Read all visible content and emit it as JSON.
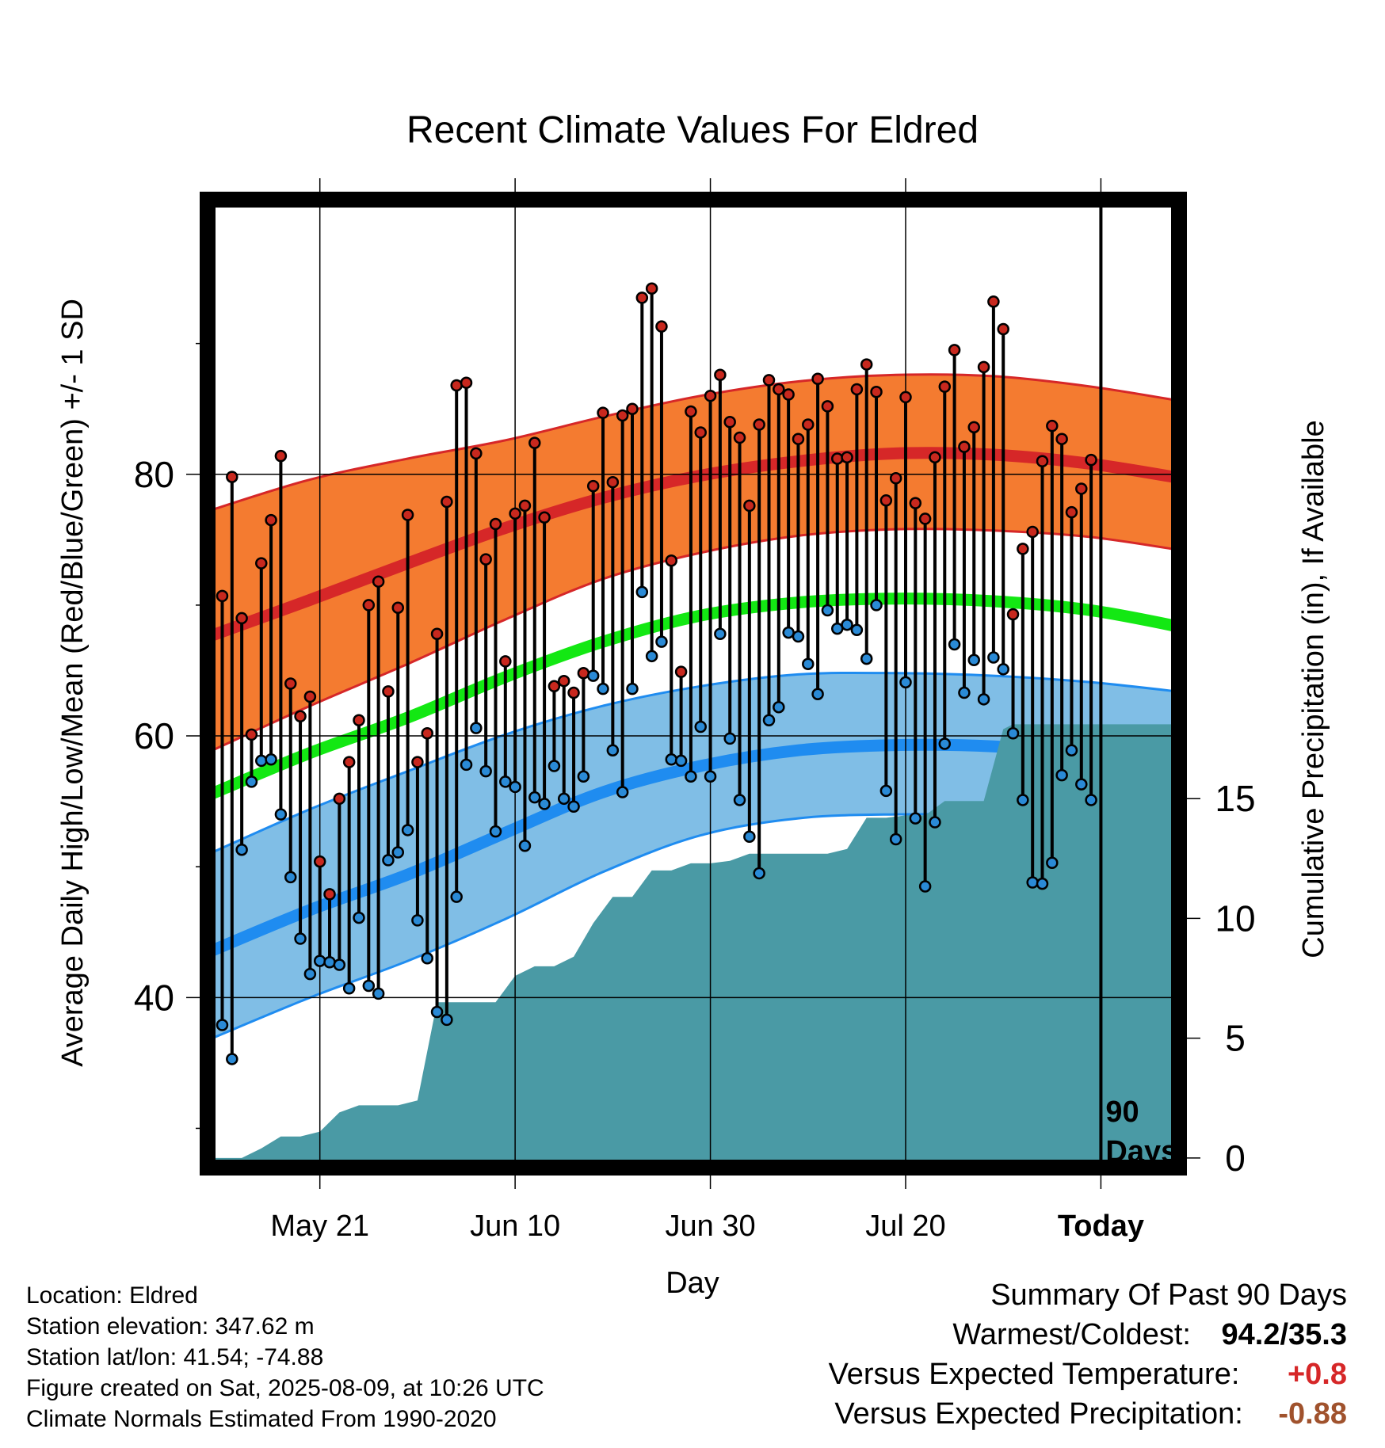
{
  "chart_data": {
    "type": "line",
    "title": "Recent Climate Values For Eldred",
    "xlabel": "Day",
    "ylabel_left": "Average Daily High/Low/Mean (Red/Blue/Green) +/- 1 SD",
    "ylabel_right": "Cumulative Precipitation (in), If Available",
    "x_ticks": [
      "May 21",
      "Jun 10",
      "Jun 30",
      "Jul 20",
      "Today"
    ],
    "x_tick_days": [
      10,
      30,
      50,
      70,
      90
    ],
    "xlim_days": [
      -1.5,
      98
    ],
    "ylim_temperature": [
      27,
      101
    ],
    "y_ticks_temperature": [
      40,
      60,
      80
    ],
    "y_minor_ticks_temperature": [
      30,
      50,
      70,
      90
    ],
    "ylim_precipitation": [
      -0.4,
      40
    ],
    "y_ticks_precipitation": [
      0,
      5,
      10,
      15
    ],
    "today_marker_label": [
      "90",
      "Days"
    ],
    "grid": true,
    "colors": {
      "high_band": "#f47b30",
      "high_line": "#d62728",
      "low_band": "#80bee6",
      "low_line": "#1f8cf0",
      "mean_line": "#13e813",
      "precip": "#4a9aa5",
      "high_dot": "#c8281e",
      "low_dot": "#2a8ad6",
      "precip_anomaly": "#a0522d",
      "temp_anomaly": "#d62728"
    },
    "normals": {
      "day": [
        -1,
        9,
        19,
        29,
        39,
        49,
        59,
        69,
        79,
        89,
        99
      ],
      "high_mean": [
        67.7,
        70.4,
        73.2,
        75.9,
        78.2,
        79.9,
        81.0,
        81.6,
        81.5,
        80.8,
        79.6
      ],
      "high_upper": [
        77.3,
        79.6,
        81.2,
        82.6,
        84.4,
        86.0,
        87.1,
        87.6,
        87.5,
        86.7,
        85.5
      ],
      "high_lower": [
        58.9,
        62.3,
        65.5,
        68.9,
        72.0,
        74.0,
        75.3,
        75.8,
        75.7,
        75.2,
        74.1
      ],
      "mean_mean": [
        55.6,
        58.7,
        61.4,
        64.5,
        67.2,
        69.2,
        70.2,
        70.5,
        70.3,
        69.6,
        68.2
      ],
      "low_mean": [
        43.6,
        46.7,
        49.4,
        52.6,
        55.7,
        57.7,
        58.9,
        59.3,
        59.2,
        58.5,
        57.3
      ],
      "low_upper": [
        51.1,
        54.4,
        57.3,
        60.1,
        62.3,
        63.8,
        64.7,
        64.8,
        64.6,
        64.1,
        63.3
      ],
      "low_lower": [
        36.9,
        40.0,
        42.8,
        46.0,
        49.6,
        52.4,
        53.7,
        54.0,
        53.9,
        53.3,
        52.2
      ]
    },
    "series": [
      {
        "name": "High",
        "values": [
          70.7,
          79.8,
          69.0,
          60.1,
          73.2,
          76.5,
          81.4,
          64.0,
          61.5,
          63.0,
          50.4,
          47.9,
          55.2,
          58.0,
          61.2,
          70.0,
          71.8,
          63.4,
          69.8,
          76.9,
          58.0,
          60.2,
          67.8,
          77.9,
          86.8,
          87.0,
          81.6,
          73.5,
          76.2,
          65.7,
          77.0,
          77.6,
          82.4,
          76.7,
          63.8,
          64.2,
          63.3,
          64.8,
          79.1,
          84.7,
          79.4,
          84.5,
          85.0,
          93.5,
          94.2,
          91.3,
          73.4,
          64.9,
          84.8,
          83.2,
          86.0,
          87.6,
          84.0,
          82.8,
          77.6,
          83.8,
          87.2,
          86.5,
          86.1,
          82.7,
          83.8,
          87.3,
          85.2,
          81.2,
          81.3,
          86.5,
          88.4,
          86.3,
          78.0,
          79.7,
          85.9,
          77.8,
          76.6,
          81.3,
          86.7,
          89.5,
          82.1,
          83.6,
          88.2,
          93.2,
          91.1,
          69.3,
          74.3,
          75.6,
          81.0,
          83.7,
          82.7,
          77.1,
          78.9,
          81.1
        ]
      },
      {
        "name": "Low",
        "values": [
          37.9,
          35.3,
          51.3,
          56.5,
          58.1,
          58.2,
          54.0,
          49.2,
          44.5,
          41.8,
          42.8,
          42.7,
          42.5,
          40.7,
          46.1,
          40.9,
          40.3,
          50.5,
          51.1,
          52.8,
          45.9,
          43.0,
          38.9,
          38.3,
          47.7,
          57.8,
          60.6,
          57.3,
          52.7,
          56.5,
          56.1,
          51.6,
          55.3,
          54.8,
          57.7,
          55.2,
          54.6,
          56.9,
          64.6,
          63.6,
          58.9,
          55.7,
          63.6,
          71.0,
          66.1,
          67.2,
          58.2,
          58.1,
          56.9,
          60.7,
          56.9,
          67.8,
          59.8,
          55.1,
          52.3,
          49.5,
          61.2,
          62.2,
          67.9,
          67.6,
          65.5,
          63.2,
          69.6,
          68.2,
          68.5,
          68.1,
          65.9,
          70.0,
          55.8,
          52.1,
          64.1,
          53.7,
          48.5,
          53.4,
          59.4,
          67.0,
          63.3,
          65.8,
          62.8,
          66.0,
          65.1,
          60.2,
          55.1,
          48.8,
          48.7,
          50.3,
          57.0,
          58.9,
          56.3,
          55.1
        ]
      },
      {
        "name": "Cumulative Precipitation",
        "days": [
          -1,
          2,
          4,
          6,
          8,
          10,
          12,
          14,
          16,
          18,
          20,
          22,
          23,
          26,
          28,
          30,
          32,
          34,
          36,
          38,
          40,
          42,
          44,
          46,
          48,
          50,
          52,
          54,
          56,
          58,
          60,
          62,
          64,
          66,
          68,
          70,
          72,
          74,
          76,
          78,
          80,
          81,
          82,
          84,
          86,
          88,
          90,
          92,
          94,
          96,
          98
        ],
        "values": [
          0,
          0,
          0.4,
          0.9,
          0.9,
          1.1,
          1.9,
          2.2,
          2.2,
          2.2,
          2.4,
          6.5,
          6.5,
          6.5,
          6.5,
          7.6,
          8.0,
          8.0,
          8.4,
          9.8,
          10.9,
          10.9,
          12.0,
          12.0,
          12.3,
          12.3,
          12.4,
          12.7,
          12.7,
          12.7,
          12.7,
          12.7,
          12.9,
          14.2,
          14.2,
          14.3,
          14.3,
          14.9,
          14.9,
          14.9,
          17.9,
          18.1,
          18.1,
          18.1,
          18.1,
          18.1,
          18.1,
          18.1,
          18.1,
          18.1,
          18.1
        ]
      }
    ]
  },
  "info": {
    "location": "Location: Eldred",
    "elevation": "Station elevation: 347.62 m",
    "latlon": "Station lat/lon: 41.54; -74.88",
    "created": "Figure created on Sat, 2025-08-09, at 10:26 UTC",
    "normals": "Climate Normals Estimated From 1990-2020"
  },
  "summary": {
    "title": "Summary Of Past 90 Days",
    "warmest_label": "Warmest/Coldest:",
    "warmest_value": "94.2/35.3",
    "temp_label": "Versus Expected Temperature:",
    "temp_value": "+0.8",
    "precip_label": "Versus Expected Precipitation:",
    "precip_value": "-0.88"
  }
}
